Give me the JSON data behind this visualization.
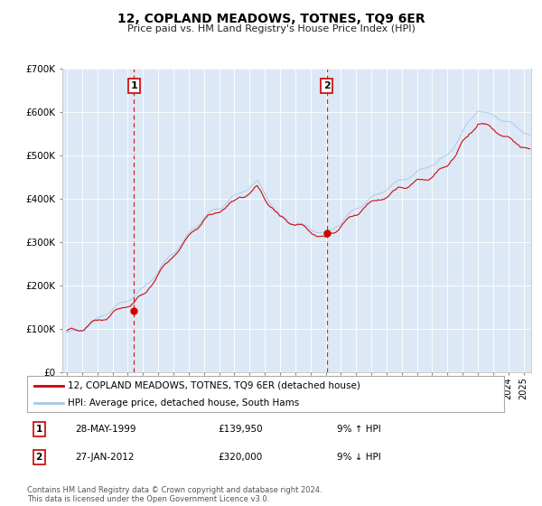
{
  "title": "12, COPLAND MEADOWS, TOTNES, TQ9 6ER",
  "subtitle": "Price paid vs. HM Land Registry's House Price Index (HPI)",
  "legend_line1": "12, COPLAND MEADOWS, TOTNES, TQ9 6ER (detached house)",
  "legend_line2": "HPI: Average price, detached house, South Hams",
  "sale1_date": "28-MAY-1999",
  "sale1_price": 139950,
  "sale1_note": "9% ↑ HPI",
  "sale2_date": "27-JAN-2012",
  "sale2_price": 320000,
  "sale2_note": "9% ↓ HPI",
  "footer": "Contains HM Land Registry data © Crown copyright and database right 2024.\nThis data is licensed under the Open Government Licence v3.0.",
  "hpi_color": "#a8c8e8",
  "price_color": "#cc0000",
  "vline_color": "#cc0000",
  "bg_color": "#dce8f5",
  "grid_color": "#ffffff",
  "ylim": [
    0,
    700000
  ],
  "xlim_start": 1994.7,
  "xlim_end": 2025.5,
  "sale1_year": 1999.41,
  "sale2_year": 2012.07
}
